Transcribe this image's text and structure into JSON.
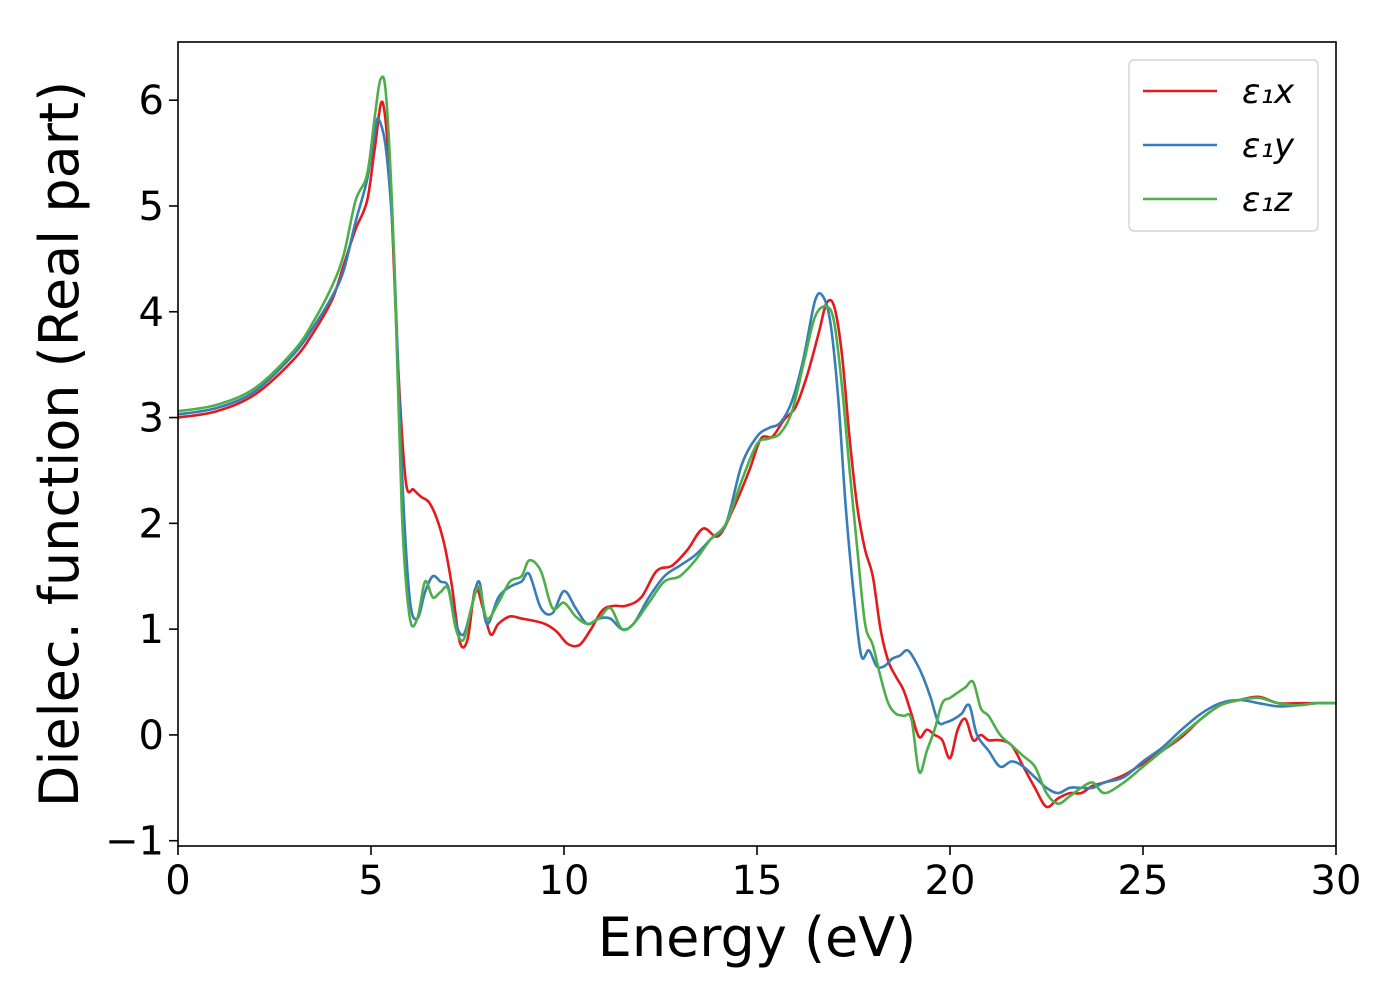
{
  "chart_data": {
    "type": "line",
    "title": "",
    "xlabel": "Energy (eV)",
    "ylabel": "Dielec. function (Real part)",
    "xlim": [
      0,
      30
    ],
    "ylim": [
      -1.05,
      6.55
    ],
    "xticks": [
      0,
      5,
      10,
      15,
      20,
      25,
      30
    ],
    "xtick_labels": [
      "0",
      "5",
      "10",
      "15",
      "20",
      "25",
      "30"
    ],
    "yticks": [
      -1,
      0,
      1,
      2,
      3,
      4,
      5,
      6
    ],
    "ytick_labels": [
      "−1",
      "0",
      "1",
      "2",
      "3",
      "4",
      "5",
      "6"
    ],
    "grid": false,
    "legend_position": "top-right",
    "series": [
      {
        "name": "ε₁x",
        "color": "#e41a1c",
        "x": [
          0,
          1,
          2,
          3,
          3.5,
          4,
          4.3,
          4.6,
          4.9,
          5.1,
          5.3,
          5.5,
          5.7,
          5.9,
          6.1,
          6.3,
          6.5,
          6.7,
          6.9,
          7.1,
          7.3,
          7.5,
          7.7,
          7.9,
          8.1,
          8.3,
          8.6,
          8.9,
          9.2,
          9.5,
          9.8,
          10.1,
          10.4,
          10.7,
          11,
          11.3,
          11.6,
          12,
          12.4,
          12.8,
          13.2,
          13.6,
          14,
          14.4,
          14.8,
          15.1,
          15.4,
          15.7,
          16,
          16.3,
          16.6,
          16.8,
          17,
          17.2,
          17.4,
          17.6,
          17.8,
          18,
          18.2,
          18.4,
          18.6,
          18.8,
          19,
          19.2,
          19.4,
          19.6,
          19.8,
          20,
          20.2,
          20.4,
          20.6,
          20.8,
          21,
          21.3,
          21.6,
          21.9,
          22.2,
          22.5,
          22.8,
          23.1,
          23.4,
          23.7,
          24,
          24.5,
          25,
          25.5,
          26,
          26.5,
          27,
          27.5,
          28,
          28.5,
          29,
          29.5,
          30
        ],
        "values": [
          3.0,
          3.06,
          3.22,
          3.55,
          3.8,
          4.12,
          4.45,
          4.78,
          5.05,
          5.55,
          5.98,
          5.2,
          3.5,
          2.4,
          2.32,
          2.25,
          2.2,
          2.05,
          1.8,
          1.4,
          0.88,
          0.9,
          1.38,
          1.2,
          0.95,
          1.05,
          1.12,
          1.1,
          1.08,
          1.05,
          0.98,
          0.86,
          0.85,
          1.0,
          1.18,
          1.22,
          1.22,
          1.3,
          1.55,
          1.6,
          1.75,
          1.95,
          1.88,
          2.15,
          2.5,
          2.8,
          2.82,
          2.98,
          3.1,
          3.4,
          3.8,
          4.08,
          4.05,
          3.6,
          2.8,
          2.15,
          1.75,
          1.5,
          1.0,
          0.7,
          0.55,
          0.42,
          0.2,
          -0.02,
          0.05,
          0.0,
          -0.05,
          -0.22,
          0.05,
          0.15,
          -0.05,
          0.0,
          -0.05,
          -0.05,
          -0.1,
          -0.3,
          -0.5,
          -0.68,
          -0.6,
          -0.55,
          -0.55,
          -0.48,
          -0.45,
          -0.38,
          -0.27,
          -0.15,
          -0.02,
          0.15,
          0.28,
          0.33,
          0.36,
          0.3,
          0.3,
          0.3,
          0.3
        ]
      },
      {
        "name": "ε₁y",
        "color": "#377eb8",
        "x": [
          0,
          1,
          2,
          3,
          3.5,
          4,
          4.3,
          4.6,
          4.9,
          5.1,
          5.2,
          5.4,
          5.6,
          5.8,
          6.0,
          6.2,
          6.4,
          6.6,
          6.8,
          7.0,
          7.2,
          7.4,
          7.6,
          7.8,
          8.0,
          8.3,
          8.6,
          8.9,
          9.1,
          9.4,
          9.7,
          10.0,
          10.3,
          10.6,
          10.9,
          11.2,
          11.5,
          11.8,
          12.2,
          12.6,
          13,
          13.4,
          13.8,
          14.2,
          14.6,
          15,
          15.3,
          15.6,
          15.9,
          16.2,
          16.5,
          16.7,
          16.9,
          17.1,
          17.3,
          17.5,
          17.7,
          17.9,
          18.1,
          18.3,
          18.5,
          18.7,
          18.9,
          19.1,
          19.3,
          19.5,
          19.7,
          19.9,
          20.1,
          20.3,
          20.5,
          20.7,
          21,
          21.3,
          21.6,
          21.9,
          22.2,
          22.5,
          22.8,
          23.1,
          23.4,
          23.7,
          24,
          24.5,
          25,
          25.5,
          26,
          26.5,
          27,
          27.5,
          28,
          28.5,
          29,
          29.5,
          30
        ],
        "values": [
          3.03,
          3.09,
          3.25,
          3.6,
          3.85,
          4.15,
          4.4,
          4.85,
          5.25,
          5.7,
          5.82,
          5.5,
          4.5,
          2.5,
          1.3,
          1.1,
          1.35,
          1.5,
          1.45,
          1.4,
          1.05,
          0.95,
          1.2,
          1.45,
          1.05,
          1.3,
          1.4,
          1.45,
          1.52,
          1.2,
          1.15,
          1.36,
          1.2,
          1.05,
          1.1,
          1.1,
          1.0,
          1.05,
          1.3,
          1.5,
          1.6,
          1.7,
          1.85,
          2.0,
          2.55,
          2.82,
          2.9,
          2.95,
          3.15,
          3.55,
          4.1,
          4.15,
          3.9,
          3.2,
          2.15,
          1.35,
          0.75,
          0.8,
          0.65,
          0.65,
          0.72,
          0.75,
          0.8,
          0.7,
          0.55,
          0.35,
          0.12,
          0.12,
          0.15,
          0.2,
          0.28,
          0.0,
          -0.15,
          -0.3,
          -0.25,
          -0.3,
          -0.4,
          -0.5,
          -0.55,
          -0.5,
          -0.5,
          -0.5,
          -0.45,
          -0.4,
          -0.25,
          -0.12,
          0.05,
          0.2,
          0.3,
          0.33,
          0.3,
          0.27,
          0.28,
          0.3,
          0.3
        ]
      },
      {
        "name": "ε₁z",
        "color": "#4daf4a",
        "x": [
          0,
          1,
          2,
          3,
          3.5,
          4,
          4.3,
          4.6,
          4.9,
          5.1,
          5.25,
          5.4,
          5.6,
          5.8,
          6.0,
          6.2,
          6.4,
          6.6,
          6.8,
          7.0,
          7.2,
          7.4,
          7.6,
          7.8,
          8.0,
          8.3,
          8.6,
          8.9,
          9.1,
          9.4,
          9.7,
          10.0,
          10.3,
          10.6,
          10.9,
          11.2,
          11.5,
          11.8,
          12.2,
          12.6,
          13,
          13.4,
          13.8,
          14.2,
          14.6,
          15,
          15.3,
          15.6,
          15.9,
          16.2,
          16.5,
          16.8,
          17,
          17.2,
          17.4,
          17.6,
          17.8,
          18,
          18.2,
          18.4,
          18.6,
          18.8,
          19,
          19.2,
          19.4,
          19.6,
          19.8,
          20,
          20.2,
          20.4,
          20.6,
          20.8,
          21,
          21.3,
          21.6,
          21.9,
          22.2,
          22.5,
          22.8,
          23.1,
          23.4,
          23.7,
          24,
          24.5,
          25,
          25.5,
          26,
          26.5,
          27,
          27.5,
          28,
          28.5,
          29,
          29.5,
          30
        ],
        "values": [
          3.06,
          3.12,
          3.28,
          3.63,
          3.9,
          4.25,
          4.55,
          5.05,
          5.3,
          5.85,
          6.2,
          6.0,
          4.5,
          2.1,
          1.12,
          1.1,
          1.45,
          1.3,
          1.35,
          1.38,
          1.0,
          0.9,
          1.2,
          1.4,
          1.1,
          1.25,
          1.45,
          1.5,
          1.65,
          1.55,
          1.2,
          1.25,
          1.12,
          1.05,
          1.1,
          1.2,
          1.0,
          1.05,
          1.25,
          1.45,
          1.5,
          1.65,
          1.85,
          2.0,
          2.4,
          2.75,
          2.8,
          2.85,
          3.05,
          3.5,
          3.95,
          4.05,
          3.9,
          3.3,
          2.5,
          1.75,
          1.05,
          0.85,
          0.55,
          0.3,
          0.2,
          0.18,
          0.15,
          -0.35,
          -0.15,
          0.05,
          0.3,
          0.35,
          0.4,
          0.45,
          0.5,
          0.25,
          0.18,
          0.0,
          -0.1,
          -0.2,
          -0.3,
          -0.55,
          -0.65,
          -0.58,
          -0.5,
          -0.45,
          -0.55,
          -0.45,
          -0.3,
          -0.15,
          0.0,
          0.15,
          0.28,
          0.33,
          0.35,
          0.3,
          0.28,
          0.3,
          0.3
        ]
      }
    ]
  }
}
